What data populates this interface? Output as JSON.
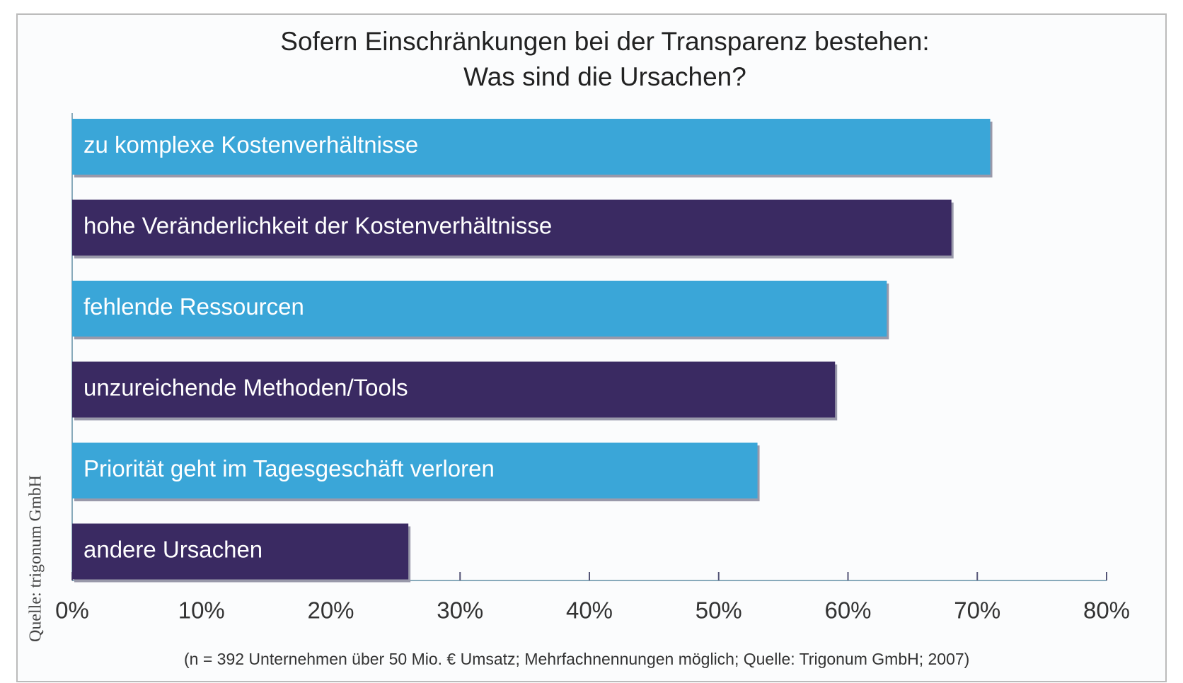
{
  "chart_data": {
    "type": "barh",
    "title": "Sofern Einschränkungen bei der Transparenz bestehen:",
    "subtitle": "Was sind die Ursachen?",
    "categories": [
      "zu komplexe Kostenverhältnisse",
      "hohe Veränderlichkeit der Kostenverhältnisse",
      "fehlende Ressourcen",
      "unzureichende Methoden/Tools",
      "Priorität geht im Tagesgeschäft verloren",
      "andere Ursachen"
    ],
    "values": [
      71,
      68,
      63,
      59,
      53,
      26
    ],
    "colors": [
      "#3aa6d8",
      "#3a2a62",
      "#3aa6d8",
      "#3a2a62",
      "#3aa6d8",
      "#3a2a62"
    ],
    "xlim": [
      0,
      80
    ],
    "xticks": [
      {
        "value": 0,
        "label": "0%"
      },
      {
        "value": 10,
        "label": "10%"
      },
      {
        "value": 20,
        "label": "20%"
      },
      {
        "value": 30,
        "label": "30%"
      },
      {
        "value": 40,
        "label": "40%"
      },
      {
        "value": 50,
        "label": "50%"
      },
      {
        "value": 60,
        "label": "60%"
      },
      {
        "value": 70,
        "label": "70%"
      },
      {
        "value": 80,
        "label": "80%"
      }
    ],
    "footnote": "(n = 392 Unternehmen über 50 Mio. € Umsatz; Mehrfachnennungen möglich; Quelle: Trigonum GmbH; 2007)",
    "source": "Quelle: trigonum GmbH"
  }
}
